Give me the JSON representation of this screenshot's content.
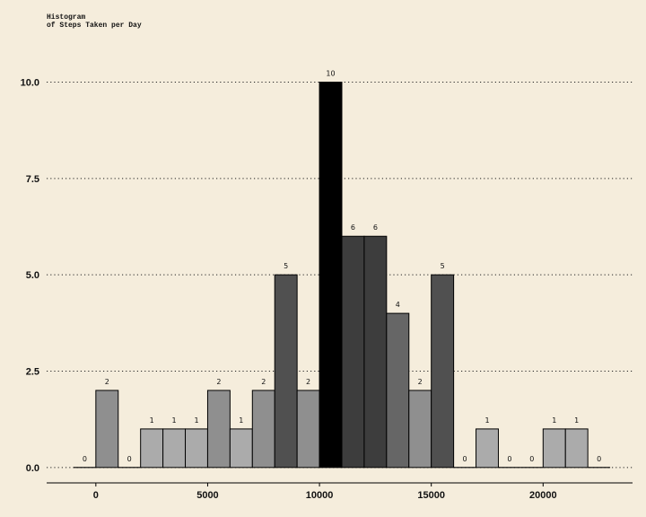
{
  "chart_data": {
    "type": "bar",
    "title_line1": "Histogram",
    "title_line2": "of Steps Taken per Day",
    "xlabel": "",
    "ylabel": "",
    "bin_width": 1000,
    "bin_starts": [
      -1000,
      0,
      1000,
      2000,
      3000,
      4000,
      5000,
      6000,
      7000,
      8000,
      9000,
      10000,
      11000,
      12000,
      13000,
      14000,
      15000,
      16000,
      17000,
      18000,
      19000,
      20000,
      21000,
      22000
    ],
    "values": [
      0,
      2,
      0,
      1,
      1,
      1,
      2,
      1,
      2,
      5,
      2,
      10,
      6,
      6,
      4,
      2,
      5,
      0,
      1,
      0,
      0,
      1,
      1,
      0
    ],
    "xlim": [
      -2200,
      24000
    ],
    "ylim": [
      -0.4,
      11.2
    ],
    "x_ticks": [
      0,
      5000,
      10000,
      15000,
      20000
    ],
    "y_ticks": [
      0,
      2.5,
      5,
      7.5,
      10
    ],
    "y_tick_labels": [
      "0.0",
      "2.5",
      "5.0",
      "7.5",
      "10.0"
    ],
    "grid": "horizontal dotted",
    "colors": {
      "background": "#f5eddc",
      "bar_light": "#ababab",
      "bar_mid": "#8f8f8f",
      "bar_dark": "#666666",
      "bar_darker": "#505050",
      "bar_darkest": "#3d3d3d",
      "bar_max": "#000000"
    }
  }
}
